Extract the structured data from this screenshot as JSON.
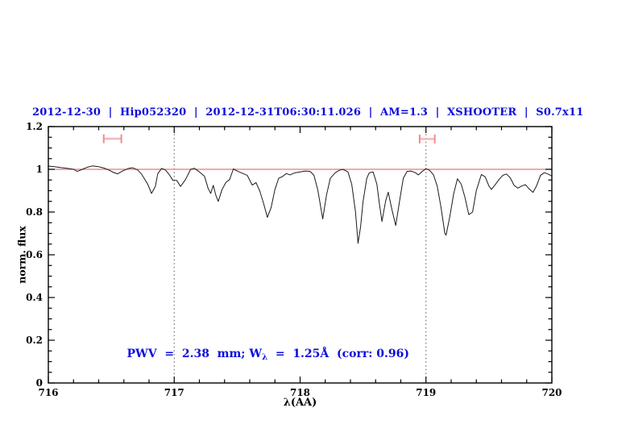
{
  "title": "2012-12-30  |  Hip052320  |  2012-12-31T06:30:11.026  |  AM=1.3  |  XSHOOTER  |  S0.7x11",
  "annotation": {
    "prefix": "PWV  =  2.38  mm; W",
    "sub": "λ",
    "suffix": "  =  1.25Å  (corr: 0.96)"
  },
  "colors": {
    "accent_text": "#0c0cdc",
    "spectrum": "#1a1a1a",
    "continuum": "#f07474",
    "marker_bar": "#f6b8b8",
    "marker_cap": "#ee8c8c",
    "reference_dotted": "#555555",
    "frame": "#000000"
  },
  "chart_data": {
    "type": "line",
    "title": "2012-12-30 | Hip052320 | 2012-12-31T06:30:11.026 | AM=1.3 | XSHOOTER | S0.7x11",
    "xlabel": "λ(AA)",
    "ylabel": "norm. flux",
    "xlim": [
      716,
      720
    ],
    "ylim": [
      0,
      1.2
    ],
    "x_ticks": [
      716,
      717,
      718,
      719,
      720
    ],
    "x_tick_labels": [
      "716",
      "717",
      "718",
      "719",
      "720"
    ],
    "x_minor_step": 0.2,
    "y_ticks": [
      0,
      0.2,
      0.4,
      0.6,
      0.8,
      1,
      1.2
    ],
    "y_tick_labels": [
      "0",
      "0.2",
      "0.4",
      "0.6",
      "0.8",
      "1",
      "1.2"
    ],
    "y_minor_step": 0.05,
    "grid": false,
    "legend": null,
    "reference_lines_x": [
      717,
      719
    ],
    "continuum_level": 1.0,
    "annotation_text": "PWV = 2.38 mm; W_λ = 1.25Å (corr: 0.96)",
    "markers": [
      {
        "name": "pwv-band-left",
        "x": 716.51,
        "y": 1.143,
        "xerr": 0.07
      },
      {
        "name": "pwv-band-right",
        "x": 719.01,
        "y": 1.142,
        "xerr": 0.06
      }
    ],
    "series": [
      {
        "name": "telluric-spectrum",
        "color": "#1a1a1a",
        "points": [
          [
            716.0,
            1.015
          ],
          [
            716.05,
            1.012
          ],
          [
            716.1,
            1.008
          ],
          [
            716.15,
            1.005
          ],
          [
            716.2,
            1.0
          ],
          [
            716.23,
            0.99
          ],
          [
            716.27,
            1.0
          ],
          [
            716.31,
            1.01
          ],
          [
            716.35,
            1.016
          ],
          [
            716.4,
            1.012
          ],
          [
            716.44,
            1.006
          ],
          [
            716.48,
            0.997
          ],
          [
            716.52,
            0.985
          ],
          [
            716.55,
            0.979
          ],
          [
            716.59,
            0.992
          ],
          [
            716.64,
            1.005
          ],
          [
            716.67,
            1.007
          ],
          [
            716.71,
            0.997
          ],
          [
            716.74,
            0.978
          ],
          [
            716.79,
            0.93
          ],
          [
            716.82,
            0.887
          ],
          [
            716.85,
            0.92
          ],
          [
            716.87,
            0.98
          ],
          [
            716.9,
            1.004
          ],
          [
            716.93,
            0.997
          ],
          [
            716.96,
            0.976
          ],
          [
            716.99,
            0.948
          ],
          [
            717.02,
            0.948
          ],
          [
            717.05,
            0.92
          ],
          [
            717.09,
            0.952
          ],
          [
            717.13,
            1.0
          ],
          [
            717.16,
            1.005
          ],
          [
            717.2,
            0.988
          ],
          [
            717.24,
            0.968
          ],
          [
            717.27,
            0.91
          ],
          [
            717.29,
            0.887
          ],
          [
            717.31,
            0.925
          ],
          [
            717.33,
            0.88
          ],
          [
            717.35,
            0.85
          ],
          [
            717.38,
            0.905
          ],
          [
            717.41,
            0.938
          ],
          [
            717.44,
            0.952
          ],
          [
            717.47,
            1.002
          ],
          [
            717.5,
            0.992
          ],
          [
            717.54,
            0.982
          ],
          [
            717.58,
            0.972
          ],
          [
            717.62,
            0.926
          ],
          [
            717.65,
            0.938
          ],
          [
            717.68,
            0.898
          ],
          [
            717.71,
            0.84
          ],
          [
            717.74,
            0.775
          ],
          [
            717.77,
            0.822
          ],
          [
            717.8,
            0.905
          ],
          [
            717.83,
            0.958
          ],
          [
            717.86,
            0.966
          ],
          [
            717.89,
            0.98
          ],
          [
            717.92,
            0.974
          ],
          [
            717.96,
            0.984
          ],
          [
            718.0,
            0.988
          ],
          [
            718.04,
            0.992
          ],
          [
            718.08,
            0.99
          ],
          [
            718.11,
            0.972
          ],
          [
            718.14,
            0.905
          ],
          [
            718.18,
            0.768
          ],
          [
            718.21,
            0.88
          ],
          [
            718.24,
            0.958
          ],
          [
            718.28,
            0.984
          ],
          [
            718.31,
            0.995
          ],
          [
            718.34,
            1.0
          ],
          [
            718.38,
            0.988
          ],
          [
            718.41,
            0.93
          ],
          [
            718.44,
            0.8
          ],
          [
            718.46,
            0.654
          ],
          [
            718.48,
            0.728
          ],
          [
            718.5,
            0.848
          ],
          [
            718.53,
            0.958
          ],
          [
            718.55,
            0.984
          ],
          [
            718.58,
            0.988
          ],
          [
            718.61,
            0.93
          ],
          [
            718.63,
            0.84
          ],
          [
            718.65,
            0.756
          ],
          [
            718.68,
            0.852
          ],
          [
            718.7,
            0.893
          ],
          [
            718.73,
            0.81
          ],
          [
            718.76,
            0.737
          ],
          [
            718.79,
            0.85
          ],
          [
            718.82,
            0.958
          ],
          [
            718.85,
            0.99
          ],
          [
            718.88,
            0.992
          ],
          [
            718.91,
            0.986
          ],
          [
            718.94,
            0.974
          ],
          [
            718.97,
            0.99
          ],
          [
            719.0,
            1.003
          ],
          [
            719.03,
            0.995
          ],
          [
            719.06,
            0.974
          ],
          [
            719.09,
            0.92
          ],
          [
            719.12,
            0.82
          ],
          [
            719.15,
            0.7
          ],
          [
            719.16,
            0.692
          ],
          [
            719.19,
            0.78
          ],
          [
            719.22,
            0.885
          ],
          [
            719.25,
            0.956
          ],
          [
            719.28,
            0.93
          ],
          [
            719.31,
            0.868
          ],
          [
            719.34,
            0.788
          ],
          [
            719.37,
            0.8
          ],
          [
            719.4,
            0.9
          ],
          [
            719.44,
            0.976
          ],
          [
            719.47,
            0.965
          ],
          [
            719.5,
            0.922
          ],
          [
            719.52,
            0.906
          ],
          [
            719.55,
            0.928
          ],
          [
            719.58,
            0.952
          ],
          [
            719.61,
            0.972
          ],
          [
            719.64,
            0.978
          ],
          [
            719.67,
            0.96
          ],
          [
            719.7,
            0.925
          ],
          [
            719.73,
            0.912
          ],
          [
            719.76,
            0.922
          ],
          [
            719.79,
            0.928
          ],
          [
            719.82,
            0.908
          ],
          [
            719.85,
            0.892
          ],
          [
            719.88,
            0.924
          ],
          [
            719.91,
            0.972
          ],
          [
            719.94,
            0.984
          ],
          [
            719.97,
            0.978
          ],
          [
            720.0,
            0.968
          ]
        ]
      }
    ]
  }
}
